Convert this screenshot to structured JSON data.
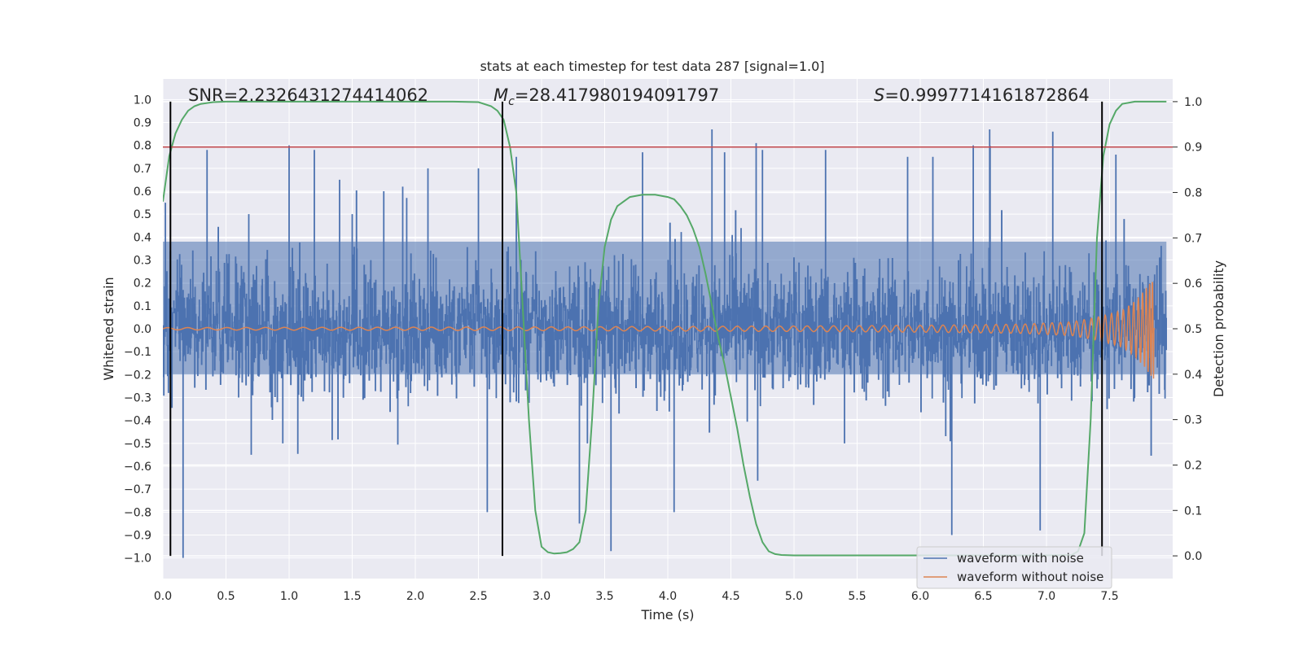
{
  "chart_data": {
    "type": "line",
    "title": "stats at each timestep for test data 287 [signal=1.0]",
    "xlabel": "Time (s)",
    "ylabel_left": "Whitened strain",
    "ylabel_right": "Detection probability",
    "xlim": [
      0.0,
      8.0
    ],
    "ylim_left": [
      -1.09,
      1.09
    ],
    "ylim_right": [
      -0.05,
      1.05
    ],
    "x_ticks": [
      "0.0",
      "0.5",
      "1.0",
      "1.5",
      "2.0",
      "2.5",
      "3.0",
      "3.5",
      "4.0",
      "4.5",
      "5.0",
      "5.5",
      "6.0",
      "6.5",
      "7.0",
      "7.5"
    ],
    "y_left_ticks": [
      "1.0",
      "0.9",
      "0.8",
      "0.7",
      "0.6",
      "0.5",
      "0.4",
      "0.3",
      "0.2",
      "0.1",
      "0.0",
      "−0.1",
      "−0.2",
      "−0.3",
      "−0.4",
      "−0.5",
      "−0.6",
      "−0.7",
      "−0.8",
      "−0.9",
      "−1.0"
    ],
    "y_right_ticks": [
      "1.0",
      "0.9",
      "0.8",
      "0.7",
      "0.6",
      "0.5",
      "0.4",
      "0.3",
      "0.2",
      "0.1",
      "0.0"
    ],
    "threshold_right": 0.9,
    "vertical_lines_time": [
      0.06,
      2.69,
      7.44
    ],
    "annotations": {
      "snr": "SNR=2.2326431274414062",
      "mc_symbol": "M",
      "mc_sub": "c",
      "mc_value": "=28.417980194091797",
      "s_symbol": "S",
      "s_value": "=0.9997714161872864"
    },
    "legend": {
      "position": "lower-right",
      "entries": [
        {
          "label": "waveform with noise",
          "color": "#4c72b0"
        },
        {
          "label": "waveform without noise",
          "color": "#dd8452"
        }
      ]
    },
    "series": [
      {
        "name": "Detection probability",
        "axis": "right",
        "color": "#55a868",
        "x": [
          0.0,
          0.05,
          0.1,
          0.15,
          0.2,
          0.25,
          0.3,
          0.4,
          0.5,
          0.7,
          1.0,
          1.5,
          2.0,
          2.3,
          2.5,
          2.6,
          2.65,
          2.7,
          2.75,
          2.8,
          2.85,
          2.9,
          2.95,
          3.0,
          3.05,
          3.1,
          3.15,
          3.2,
          3.25,
          3.3,
          3.35,
          3.4,
          3.45,
          3.5,
          3.55,
          3.6,
          3.7,
          3.8,
          3.9,
          4.0,
          4.05,
          4.1,
          4.15,
          4.2,
          4.25,
          4.3,
          4.35,
          4.4,
          4.45,
          4.5,
          4.55,
          4.6,
          4.65,
          4.7,
          4.75,
          4.8,
          4.85,
          4.9,
          5.0,
          5.5,
          6.0,
          6.5,
          7.0,
          7.2,
          7.25,
          7.3,
          7.35,
          7.4,
          7.45,
          7.5,
          7.55,
          7.6,
          7.7,
          7.95
        ],
        "values": [
          0.78,
          0.88,
          0.93,
          0.96,
          0.98,
          0.99,
          0.995,
          0.999,
          1.0,
          1.0,
          1.0,
          1.0,
          1.0,
          1.0,
          0.999,
          0.99,
          0.98,
          0.96,
          0.9,
          0.8,
          0.55,
          0.3,
          0.1,
          0.02,
          0.008,
          0.005,
          0.006,
          0.008,
          0.015,
          0.03,
          0.1,
          0.3,
          0.55,
          0.68,
          0.74,
          0.77,
          0.79,
          0.795,
          0.795,
          0.79,
          0.785,
          0.77,
          0.75,
          0.72,
          0.68,
          0.62,
          0.55,
          0.48,
          0.42,
          0.35,
          0.28,
          0.2,
          0.13,
          0.07,
          0.03,
          0.01,
          0.004,
          0.002,
          0.001,
          0.001,
          0.001,
          0.001,
          0.001,
          0.002,
          0.01,
          0.05,
          0.3,
          0.7,
          0.88,
          0.95,
          0.98,
          0.995,
          1.0,
          1.0
        ]
      },
      {
        "name": "waveform with noise",
        "axis": "left",
        "color": "#4c72b0",
        "x": [
          0.02,
          0.16,
          0.35,
          0.6,
          0.7,
          0.95,
          1.0,
          1.2,
          1.4,
          1.5,
          1.75,
          1.9,
          2.1,
          2.5,
          2.57,
          2.8,
          3.3,
          3.55,
          3.8,
          4.05,
          4.35,
          4.45,
          4.7,
          4.75,
          5.25,
          5.4,
          5.9,
          6.1,
          6.25,
          6.42,
          6.55,
          6.95,
          7.05,
          7.55
        ],
        "values": [
          0.55,
          -1.0,
          0.78,
          -0.3,
          -0.55,
          -0.5,
          0.8,
          0.78,
          0.65,
          0.5,
          0.6,
          0.62,
          0.7,
          0.7,
          -0.8,
          0.75,
          -0.85,
          -0.97,
          0.77,
          -0.8,
          0.87,
          0.77,
          0.81,
          0.78,
          0.78,
          -0.5,
          0.75,
          0.75,
          -0.9,
          0.8,
          0.87,
          -0.88,
          0.86,
          0.76
        ]
      },
      {
        "name": "waveform without noise",
        "axis": "left",
        "color": "#dd8452",
        "x": [
          0.0,
          3.0,
          5.0,
          6.0,
          6.8,
          7.2,
          7.4,
          7.6,
          7.7,
          7.78,
          7.82,
          7.85
        ],
        "values": [
          0.005,
          0.008,
          0.012,
          0.015,
          0.02,
          0.03,
          0.05,
          0.08,
          0.12,
          0.17,
          0.2,
          0.22
        ]
      }
    ]
  }
}
